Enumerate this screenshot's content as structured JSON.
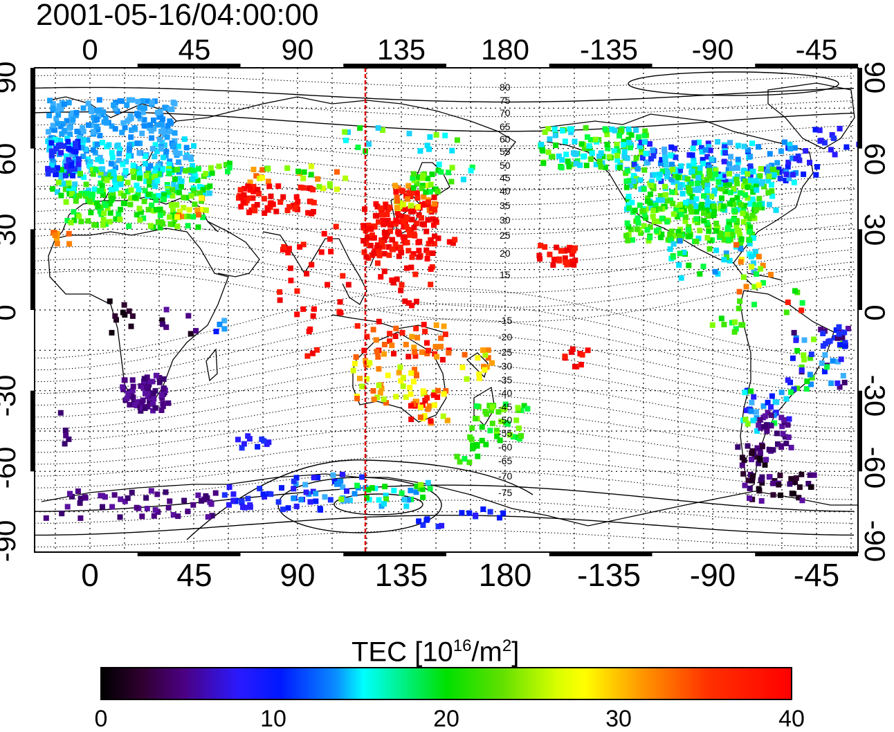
{
  "title": "2001-05-16/04:00:00",
  "map": {
    "projection": "equirectangular",
    "lon_ticks": [
      "0",
      "45",
      "90",
      "135",
      "180",
      "-135",
      "-90",
      "-45"
    ],
    "lat_ticks": [
      "90",
      "60",
      "30",
      "0",
      "-30",
      "-60",
      "-90"
    ],
    "meridian_marker_longitude": 120,
    "meridian_marker_color": "#e00000",
    "magnetic_latitude_labels_north": [
      "80",
      "75",
      "70",
      "65",
      "60",
      "55",
      "50",
      "45",
      "40",
      "35",
      "30",
      "25",
      "20",
      "15"
    ],
    "magnetic_latitude_labels_south": [
      "-15",
      "-20",
      "-25",
      "-30",
      "-35",
      "-40",
      "-45",
      "-50",
      "-55",
      "-60",
      "-65",
      "-70",
      "-75"
    ]
  },
  "colorbar": {
    "label_main": "TEC  [10",
    "label_exp1": "16",
    "label_mid": "/m",
    "label_exp2": "2",
    "label_end": "]",
    "min": 0,
    "max": 40,
    "ticks": [
      "0",
      "10",
      "20",
      "30",
      "40"
    ],
    "colormap": "jet-like: black-purple-blue-cyan-green-yellow-orange-red"
  }
}
